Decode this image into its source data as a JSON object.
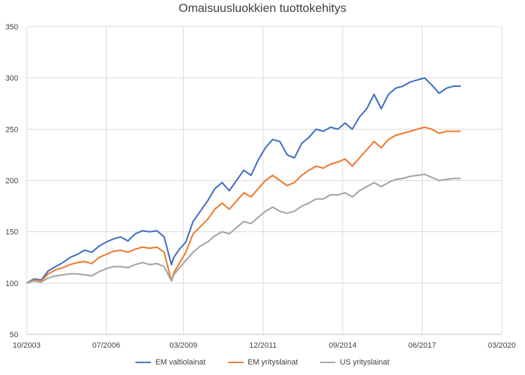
{
  "chart_data": {
    "type": "line",
    "title": "Omaisuusluokkien tuottokehitys",
    "xlabel": "",
    "ylabel": "",
    "x_ticks": [
      "10/2003",
      "07/2006",
      "03/2009",
      "12/2011",
      "09/2014",
      "06/2017",
      "03/2020"
    ],
    "y_ticks": [
      "50",
      "100",
      "150",
      "200",
      "250",
      "300",
      "350"
    ],
    "ylim": [
      50,
      350
    ],
    "xlim": [
      "2003-10",
      "2020-03"
    ],
    "grid": true,
    "legend_position": "bottom",
    "x": [
      "2003-10",
      "2004-01",
      "2004-04",
      "2004-07",
      "2004-10",
      "2005-01",
      "2005-04",
      "2005-07",
      "2005-10",
      "2006-01",
      "2006-04",
      "2006-07",
      "2006-10",
      "2007-01",
      "2007-04",
      "2007-07",
      "2007-10",
      "2008-01",
      "2008-04",
      "2008-07",
      "2008-10",
      "2008-11",
      "2009-01",
      "2009-04",
      "2009-07",
      "2009-10",
      "2010-01",
      "2010-04",
      "2010-07",
      "2010-10",
      "2011-01",
      "2011-04",
      "2011-07",
      "2011-10",
      "2012-01",
      "2012-04",
      "2012-07",
      "2012-10",
      "2013-01",
      "2013-04",
      "2013-07",
      "2013-10",
      "2014-01",
      "2014-04",
      "2014-07",
      "2014-10",
      "2015-01",
      "2015-04",
      "2015-07",
      "2015-10",
      "2016-01",
      "2016-04",
      "2016-07",
      "2016-10",
      "2017-01",
      "2017-04",
      "2017-07",
      "2017-10",
      "2018-01",
      "2018-04",
      "2018-07",
      "2018-10"
    ],
    "series": [
      {
        "name": "EM valtiolainat",
        "color": "#4472C4",
        "values": [
          100,
          104,
          103,
          112,
          116,
          120,
          125,
          128,
          132,
          130,
          136,
          140,
          143,
          145,
          141,
          148,
          151,
          150,
          151,
          145,
          118,
          125,
          132,
          140,
          160,
          170,
          180,
          192,
          198,
          190,
          200,
          210,
          205,
          220,
          232,
          240,
          238,
          225,
          222,
          236,
          242,
          250,
          248,
          252,
          250,
          256,
          250,
          262,
          270,
          284,
          270,
          284,
          290,
          292,
          296,
          298,
          300,
          293,
          285,
          290,
          292,
          292
        ]
      },
      {
        "name": "EM yrityslainat",
        "color": "#ED7D31",
        "values": [
          100,
          103,
          102,
          109,
          113,
          115,
          118,
          120,
          121,
          119,
          125,
          128,
          131,
          132,
          130,
          133,
          135,
          134,
          135,
          130,
          102,
          110,
          118,
          130,
          148,
          155,
          162,
          172,
          178,
          172,
          180,
          188,
          184,
          192,
          200,
          205,
          200,
          195,
          198,
          205,
          210,
          214,
          212,
          216,
          218,
          221,
          214,
          222,
          230,
          238,
          232,
          240,
          244,
          246,
          248,
          250,
          252,
          250,
          246,
          248,
          248,
          248
        ]
      },
      {
        "name": "US yrityslainat",
        "color": "#A5A5A5",
        "values": [
          100,
          102,
          101,
          105,
          107,
          108,
          109,
          109,
          108,
          107,
          111,
          114,
          116,
          116,
          115,
          118,
          120,
          118,
          119,
          116,
          102,
          108,
          114,
          122,
          130,
          136,
          140,
          146,
          150,
          148,
          154,
          160,
          158,
          164,
          170,
          174,
          170,
          168,
          170,
          175,
          178,
          182,
          182,
          186,
          186,
          188,
          184,
          190,
          194,
          198,
          194,
          198,
          201,
          202,
          204,
          205,
          206,
          203,
          200,
          201,
          202,
          202
        ]
      }
    ]
  }
}
